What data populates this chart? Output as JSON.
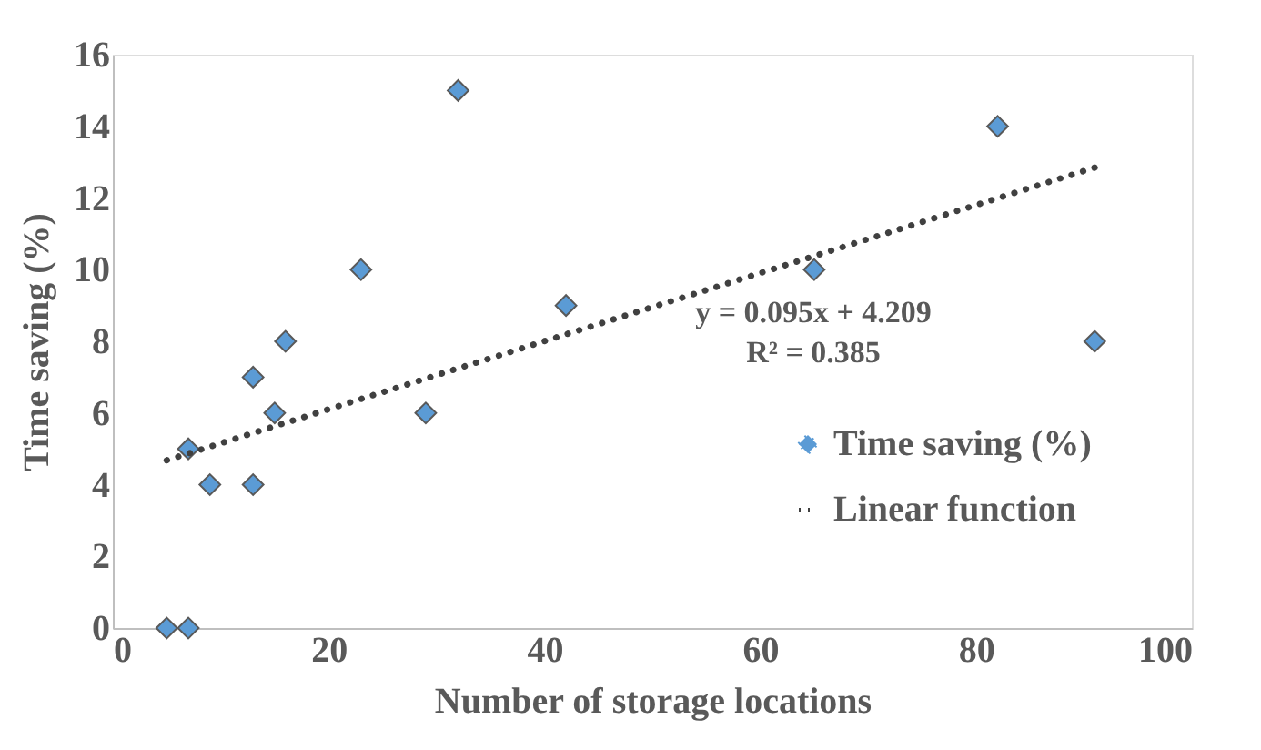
{
  "chart_data": {
    "type": "scatter",
    "xlabel": "Number of storage locations",
    "ylabel": "Time saving (%)",
    "xlim": [
      0,
      100
    ],
    "xticks": [
      0,
      20,
      40,
      60,
      80,
      100
    ],
    "ylim": [
      0,
      16
    ],
    "yticks": [
      0,
      2,
      4,
      6,
      8,
      10,
      12,
      14,
      16
    ],
    "grid": false,
    "legend": "bottom right",
    "annotations": [
      "y = 0.095x + 4.209",
      "R² = 0.385"
    ],
    "series": [
      {
        "name": "Time saving (%)",
        "marker": "diamond",
        "color": "#5b9bd5",
        "x": [
          5,
          7,
          7,
          9,
          13,
          13,
          15,
          16,
          23,
          29,
          32,
          42,
          65,
          82,
          91
        ],
        "values": [
          0,
          0,
          5,
          4,
          4,
          7,
          6,
          8,
          10,
          6,
          15,
          9,
          10,
          14,
          8
        ]
      },
      {
        "name": "Linear function",
        "type": "line",
        "line_style": "dotted",
        "color": "#404040",
        "x": [
          5,
          91
        ],
        "values": [
          4.68,
          12.85
        ]
      }
    ]
  }
}
